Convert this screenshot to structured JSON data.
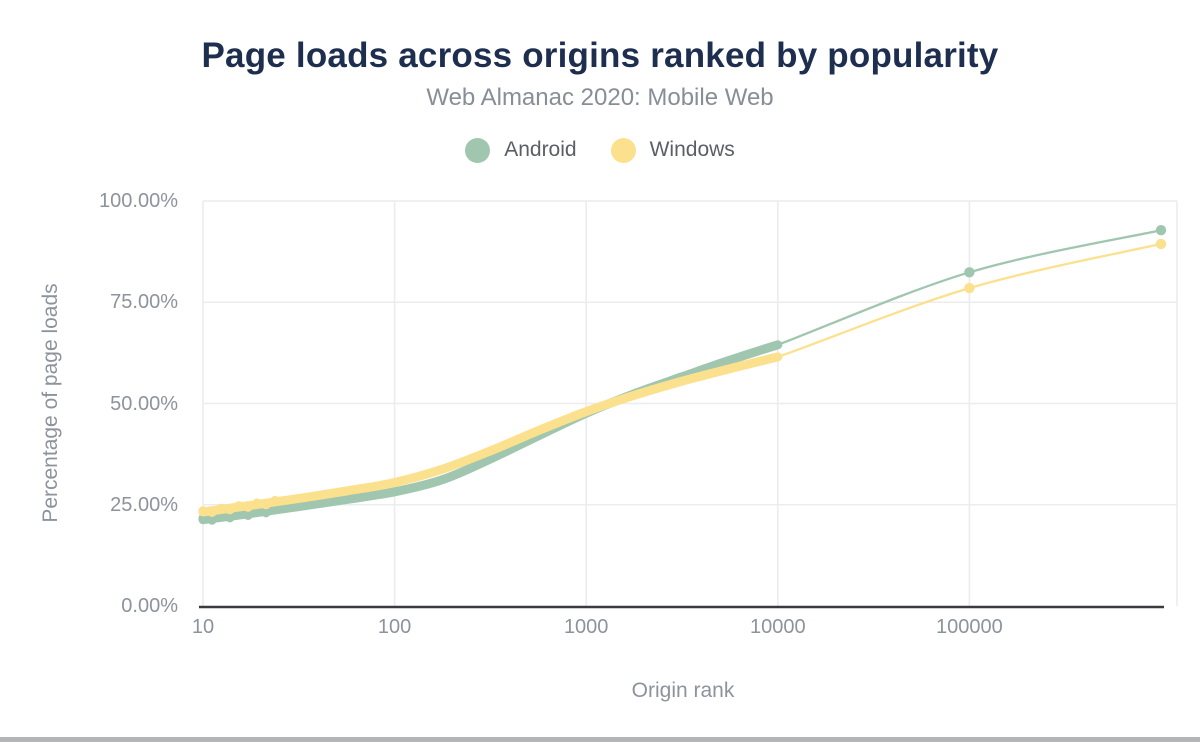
{
  "page": {
    "title": "Page loads across origins ranked by popularity",
    "subtitle": "Web Almanac 2020: Mobile Web"
  },
  "colors": {
    "title_text": "#1d2e4f",
    "subtitle_text": "#878e96",
    "axis_text": "#8d939c",
    "legend_text": "#5a5f66",
    "gridline": "#ececec",
    "axis_line": "#3a3b40",
    "android_accent": "#a0c6af",
    "windows_accent": "#fbe18e",
    "bottom_bar": "#b3b5b7",
    "background": "#ffffff"
  },
  "chart_data": {
    "type": "line",
    "title": "Page loads across origins ranked by popularity",
    "subtitle": "Web Almanac 2020: Mobile Web",
    "xlabel": "Origin rank",
    "ylabel": "Percentage of page loads",
    "x_scale": "log",
    "x_range": [
      10,
      1200000
    ],
    "y_range": [
      0,
      100
    ],
    "grid": true,
    "legend_position": "top",
    "x_ticks": [
      10,
      100,
      1000,
      10000,
      100000
    ],
    "x_tick_labels": [
      "10",
      "100",
      "1000",
      "10000",
      "100000"
    ],
    "y_ticks": [
      0,
      25,
      50,
      75,
      100
    ],
    "y_tick_labels": [
      "0.00%",
      "25.00%",
      "50.00%",
      "75.00%",
      "100.00%"
    ],
    "dense_marker_band_max_rank": 10000,
    "end_marker_ranks": [
      100000,
      1000000
    ],
    "series": [
      {
        "name": "Android",
        "color": "#a0c6af",
        "points": [
          [
            10,
            21.3
          ],
          [
            18,
            22.9
          ],
          [
            32,
            24.6
          ],
          [
            56,
            26.3
          ],
          [
            100,
            28.2
          ],
          [
            178,
            31.2
          ],
          [
            316,
            36.3
          ],
          [
            562,
            42.0
          ],
          [
            1000,
            47.6
          ],
          [
            1778,
            52.4
          ],
          [
            3162,
            56.6
          ],
          [
            5623,
            60.7
          ],
          [
            10000,
            64.5
          ],
          [
            100000,
            82.4
          ],
          [
            1000000,
            92.8
          ]
        ]
      },
      {
        "name": "Windows",
        "color": "#fbe18e",
        "points": [
          [
            10,
            23.2
          ],
          [
            18,
            24.9
          ],
          [
            32,
            26.6
          ],
          [
            56,
            28.4
          ],
          [
            100,
            30.5
          ],
          [
            178,
            33.8
          ],
          [
            316,
            38.3
          ],
          [
            562,
            43.3
          ],
          [
            1000,
            48.0
          ],
          [
            1778,
            52.0
          ],
          [
            3162,
            55.5
          ],
          [
            5623,
            58.6
          ],
          [
            10000,
            61.5
          ],
          [
            100000,
            78.5
          ],
          [
            1000000,
            89.4
          ]
        ]
      }
    ]
  }
}
